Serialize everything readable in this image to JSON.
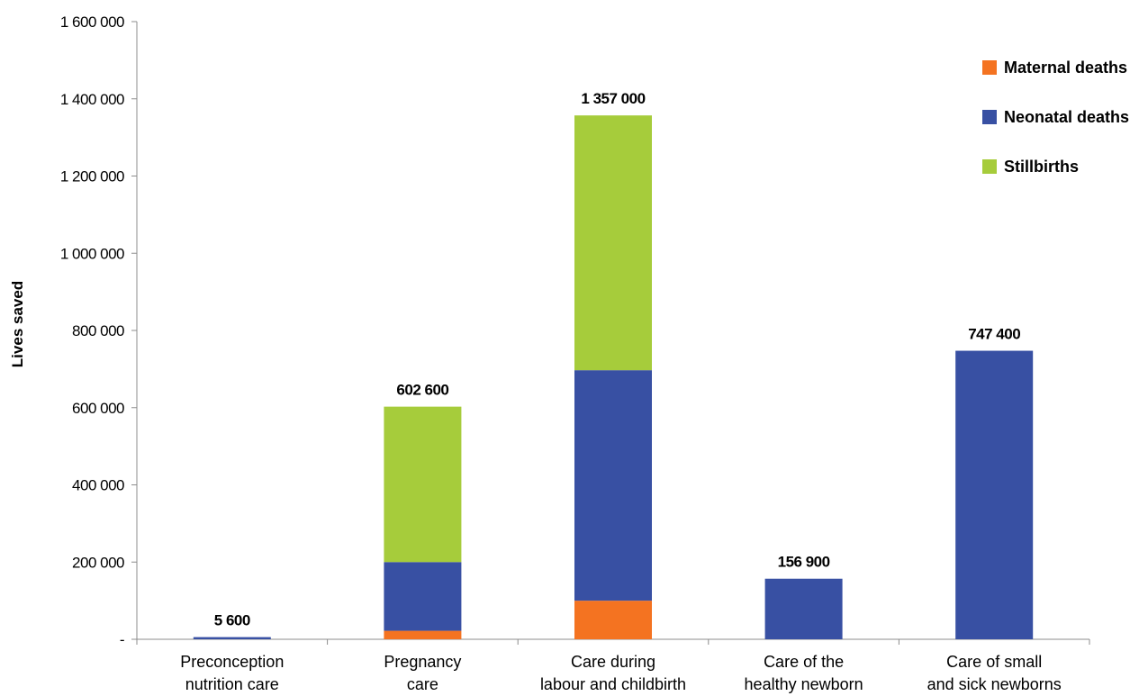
{
  "chart_data": {
    "type": "bar",
    "stacked": true,
    "ylabel": "Lives saved",
    "ylim": [
      0,
      1600000
    ],
    "yticks": [
      0,
      200000,
      400000,
      600000,
      800000,
      1000000,
      1200000,
      1400000,
      1600000
    ],
    "ytick_labels": [
      "-",
      "200 000",
      "400 000",
      "600 000",
      "800 000",
      "1 000 000",
      "1 200 000",
      "1 400 000",
      "1 600 000"
    ],
    "categories": [
      [
        "Preconception",
        "nutrition care"
      ],
      [
        "Pregnancy",
        "care"
      ],
      [
        "Care during",
        "labour and childbirth"
      ],
      [
        "Care of the",
        "healthy newborn"
      ],
      [
        "Care of small",
        "and sick newborns"
      ]
    ],
    "series": [
      {
        "name": "Maternal deaths",
        "color": "#f47321",
        "values": [
          0,
          22000,
          100000,
          0,
          0
        ]
      },
      {
        "name": "Neonatal deaths",
        "color": "#3850a3",
        "values": [
          5600,
          178000,
          597000,
          156900,
          747400
        ]
      },
      {
        "name": "Stillbirths",
        "color": "#a6cc3b",
        "values": [
          0,
          402600,
          660000,
          0,
          0
        ]
      }
    ],
    "totals": [
      5600,
      602600,
      1357000,
      156900,
      747400
    ],
    "total_labels": [
      "5 600",
      "602 600",
      "1 357 000",
      "156 900",
      "747 400"
    ],
    "legend_position": "top-right",
    "grid": false
  }
}
